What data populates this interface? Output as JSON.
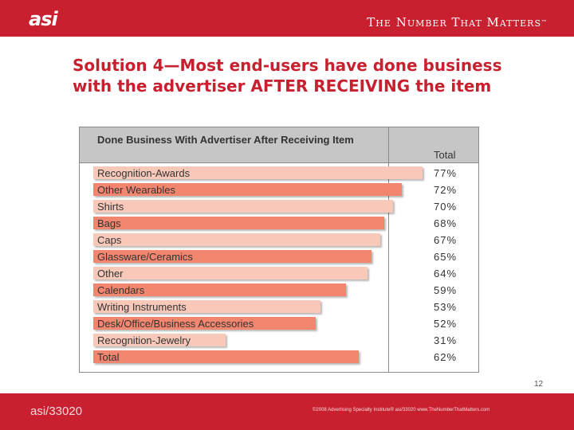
{
  "header": {
    "logo_text": "asi",
    "tagline": "The Number That Matters",
    "tm": "™"
  },
  "slide": {
    "title": "Solution 4—Most end-users have done business with the advertiser AFTER RECEIVING the item",
    "page_number": "12"
  },
  "colors": {
    "brand_red": "#c8202f",
    "bar_dark": "#f2866e",
    "bar_light": "#f8c8b8",
    "header_gray": "#c6c6c6"
  },
  "chart_data": {
    "type": "bar",
    "title": "Done Business With Advertiser After Receiving Item",
    "column_header": "Total",
    "categories": [
      "Recognition-Awards",
      "Other Wearables",
      "Shirts",
      "Bags",
      "Caps",
      "Glassware/Ceramics",
      "Other",
      "Calendars",
      "Writing Instruments",
      "Desk/Office/Business Accessories",
      "Recognition-Jewelry",
      "Total"
    ],
    "values": [
      77,
      72,
      70,
      68,
      67,
      65,
      64,
      59,
      53,
      52,
      31,
      62
    ],
    "value_labels": [
      "77%",
      "72%",
      "70%",
      "68%",
      "67%",
      "65%",
      "64%",
      "59%",
      "53%",
      "52%",
      "31%",
      "62%"
    ],
    "bar_styles": [
      "light",
      "dark",
      "light",
      "dark",
      "light",
      "dark",
      "light",
      "dark",
      "light",
      "dark",
      "light",
      "dark"
    ],
    "orientation": "horizontal",
    "xlim": [
      0,
      100
    ]
  },
  "footer": {
    "code": "asi/33020",
    "copyright": "©2008 Advertising Specialty Institute® asi/33020   www.TheNumberThatMatters.com"
  }
}
